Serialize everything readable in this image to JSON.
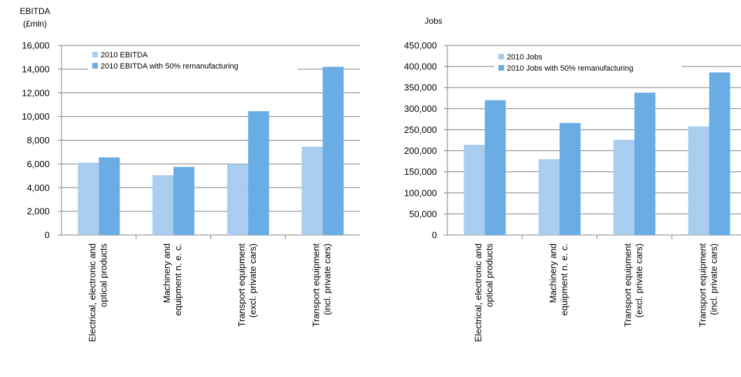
{
  "colors": {
    "light": "#a9cdef",
    "dark": "#6aace4",
    "grid": "#808080",
    "axis": "#808080"
  },
  "chart_data": [
    {
      "type": "bar",
      "ylabel_lines": [
        "EBITDA",
        "(£mln)"
      ],
      "categories": [
        [
          "Electrical, electronic and",
          "optical products"
        ],
        [
          "Machinery and",
          "equipment n. e. c."
        ],
        [
          "Transport equipment",
          "(excl. private cars)"
        ],
        [
          "Transport equipment",
          "(incl. private cars)"
        ]
      ],
      "series": [
        {
          "name": "2010 EBITDA",
          "values": [
            6100,
            5050,
            6000,
            7450
          ]
        },
        {
          "name": "2010 EBITDA with 50% remanufacturing",
          "values": [
            6550,
            5750,
            10450,
            14200
          ]
        }
      ],
      "ylim": [
        0,
        16000
      ],
      "ticks": [
        "0",
        "2,000",
        "4,000",
        "6,000",
        "8,000",
        "10,000",
        "12,000",
        "14,000",
        "16,000"
      ],
      "grid": true,
      "legend": "top-left"
    },
    {
      "type": "bar",
      "ylabel_lines": [
        "Jobs"
      ],
      "categories": [
        [
          "Electrical, electronic and",
          "optical products"
        ],
        [
          "Machinery and",
          "equipment n. e. c."
        ],
        [
          "Transport equipment",
          "(excl. private cars)"
        ],
        [
          "Transport equipment",
          "(incl. private cars)"
        ]
      ],
      "series": [
        {
          "name": "2010 Jobs",
          "values": [
            214000,
            180000,
            226000,
            258000
          ]
        },
        {
          "name": "2010 Jobs with 50% remanufacturing",
          "values": [
            320000,
            266000,
            338000,
            386000
          ]
        }
      ],
      "ylim": [
        0,
        450000
      ],
      "ticks": [
        "0",
        "50,000",
        "100,000",
        "150,000",
        "200,000",
        "250,000",
        "300,000",
        "350,000",
        "400,000",
        "450,000"
      ],
      "grid": true,
      "legend": "top-left"
    }
  ]
}
